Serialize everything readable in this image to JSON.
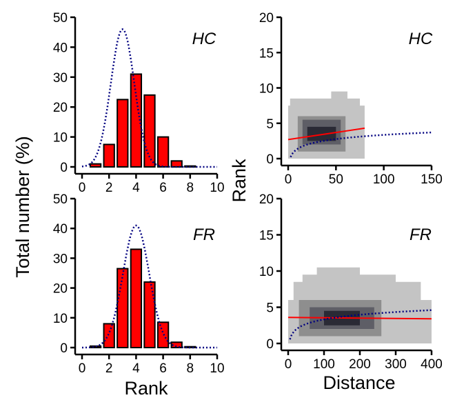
{
  "chart_data": [
    {
      "type": "bar",
      "panel": "top-left",
      "label": "HC",
      "xticks": [
        0,
        2,
        4,
        6,
        8,
        10
      ],
      "yticks": [
        0,
        10,
        20,
        30,
        40,
        50
      ],
      "xlim": [
        0,
        10
      ],
      "ylim": [
        0,
        50
      ],
      "x": [
        1,
        2,
        3,
        4,
        5,
        6,
        7,
        8
      ],
      "values": [
        1,
        7.5,
        22.5,
        31,
        24,
        10,
        2,
        0.3
      ],
      "bar_color": "#ff0000",
      "fit": {
        "style": "dotted",
        "color": "#000080",
        "mean": 3.0,
        "sd": 0.87,
        "peak": 46
      }
    },
    {
      "type": "bar",
      "panel": "bottom-left",
      "label": "FR",
      "xticks": [
        0,
        2,
        4,
        6,
        8,
        10
      ],
      "yticks": [
        0,
        10,
        20,
        30,
        40,
        50
      ],
      "xlim": [
        0,
        10
      ],
      "ylim": [
        0,
        50
      ],
      "x": [
        1,
        2,
        3,
        4,
        5,
        6,
        7,
        8
      ],
      "values": [
        0.5,
        8,
        26.5,
        33,
        22,
        8.5,
        1.8,
        0.3
      ],
      "bar_color": "#ff0000",
      "fit": {
        "style": "dotted",
        "color": "#000080",
        "mean": 4.0,
        "sd": 0.97,
        "peak": 41
      }
    },
    {
      "type": "heatmap",
      "panel": "top-right",
      "label": "HC",
      "xticks": [
        0,
        50,
        100,
        150
      ],
      "yticks": [
        0,
        5,
        10,
        15,
        20
      ],
      "xlim": [
        0,
        150
      ],
      "ylim": [
        0,
        20
      ],
      "density_blocks": [
        {
          "x": [
            0,
            80
          ],
          "y": [
            0,
            7.5
          ],
          "shade": "#c4c4c4"
        },
        {
          "x": [
            2,
            75
          ],
          "y": [
            0.5,
            8.5
          ],
          "shade": "#c4c4c4"
        },
        {
          "x": [
            45,
            62
          ],
          "y": [
            8,
            9.5
          ],
          "shade": "#c4c4c4"
        },
        {
          "x": [
            10,
            60
          ],
          "y": [
            1,
            6
          ],
          "shade": "#8e8e8e"
        },
        {
          "x": [
            15,
            55
          ],
          "y": [
            2,
            5.5
          ],
          "shade": "#5e5e66"
        },
        {
          "x": [
            20,
            50
          ],
          "y": [
            2.5,
            4.5
          ],
          "shade": "#2a2a35"
        }
      ],
      "regression": {
        "color": "#ff0000",
        "x": [
          0,
          80
        ],
        "y": [
          2.7,
          4.3
        ]
      },
      "fit": {
        "style": "dotted",
        "color": "#000080",
        "form": "log",
        "x_start": 2.5,
        "x_end": 150,
        "y_end": 3.7,
        "y_at_10": 1.4
      }
    },
    {
      "type": "heatmap",
      "panel": "bottom-right",
      "label": "FR",
      "xticks": [
        0,
        100,
        200,
        300,
        400
      ],
      "yticks": [
        0,
        5,
        10,
        15,
        20
      ],
      "xlim": [
        0,
        400
      ],
      "ylim": [
        0,
        20
      ],
      "density_blocks": [
        {
          "x": [
            0,
            400
          ],
          "y": [
            0,
            6
          ],
          "shade": "#c4c4c4"
        },
        {
          "x": [
            15,
            370
          ],
          "y": [
            0,
            8.5
          ],
          "shade": "#c4c4c4"
        },
        {
          "x": [
            40,
            300
          ],
          "y": [
            0,
            9.5
          ],
          "shade": "#c4c4c4"
        },
        {
          "x": [
            80,
            200
          ],
          "y": [
            0,
            10.5
          ],
          "shade": "#c4c4c4"
        },
        {
          "x": [
            30,
            260
          ],
          "y": [
            1,
            6
          ],
          "shade": "#8e8e8e"
        },
        {
          "x": [
            60,
            240
          ],
          "y": [
            2,
            5
          ],
          "shade": "#5e5e66"
        },
        {
          "x": [
            100,
            200
          ],
          "y": [
            2.5,
            4.5
          ],
          "shade": "#2a2a35"
        }
      ],
      "regression": {
        "color": "#ff0000",
        "x": [
          0,
          400
        ],
        "y": [
          3.6,
          3.4
        ]
      },
      "fit": {
        "style": "dotted",
        "color": "#000080",
        "form": "log",
        "x_start": 5,
        "x_end": 400,
        "y_end": 4.6,
        "y_at_10": 1.2
      }
    }
  ],
  "labels": {
    "y_left": "Total number (%)",
    "y_right": "Rank",
    "x_left": "Rank",
    "x_right": "Distance"
  }
}
